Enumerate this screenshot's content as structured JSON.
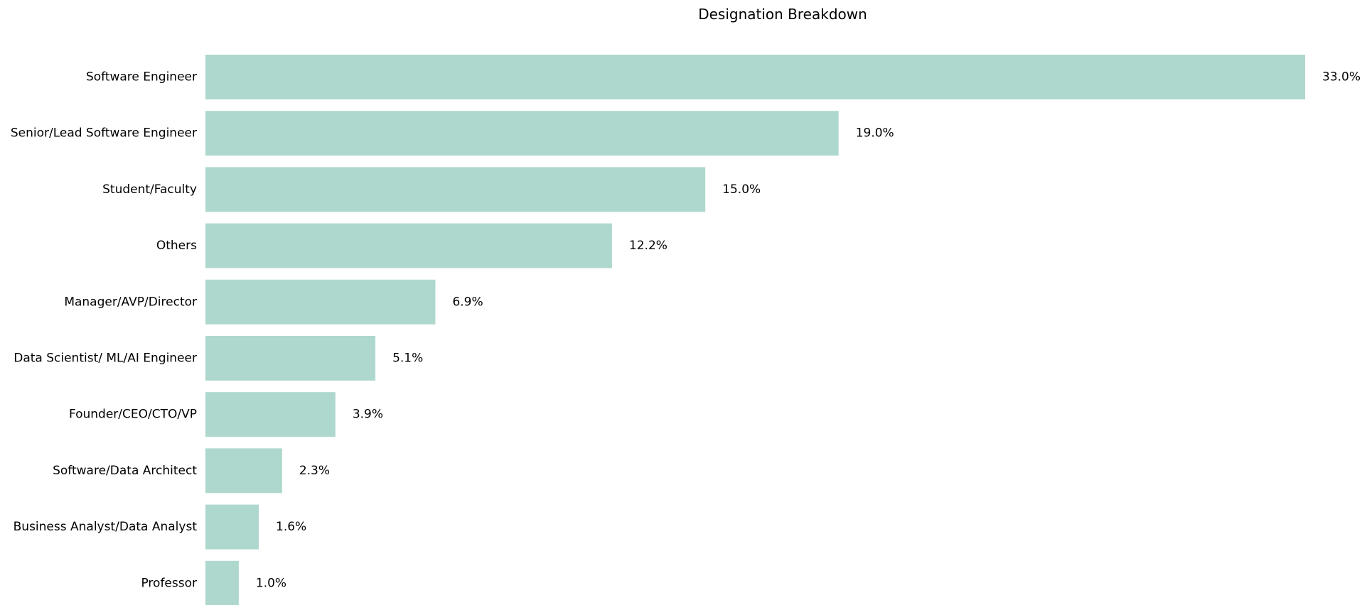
{
  "chart_data": {
    "type": "bar",
    "orientation": "horizontal",
    "title": "Designation Breakdown",
    "xlabel": "",
    "ylabel": "",
    "categories": [
      "Software Engineer",
      "Senior/Lead Software Engineer",
      "Student/Faculty",
      "Others",
      "Manager/AVP/Director",
      "Data Scientist/ ML/AI Engineer",
      "Founder/CEO/CTO/VP",
      "Software/Data Architect",
      "Business Analyst/Data Analyst",
      "Professor"
    ],
    "values": [
      33.0,
      19.0,
      15.0,
      12.2,
      6.9,
      5.1,
      3.9,
      2.3,
      1.6,
      1.0
    ],
    "data_labels": [
      "33.0%",
      "19.0%",
      "15.0%",
      "12.2%",
      "6.9%",
      "5.1%",
      "3.9%",
      "2.3%",
      "1.6%",
      "1.0%"
    ],
    "xlim": [
      0,
      33.0
    ],
    "grid": false,
    "legend": "none",
    "bar_color": "#aed8ce"
  }
}
